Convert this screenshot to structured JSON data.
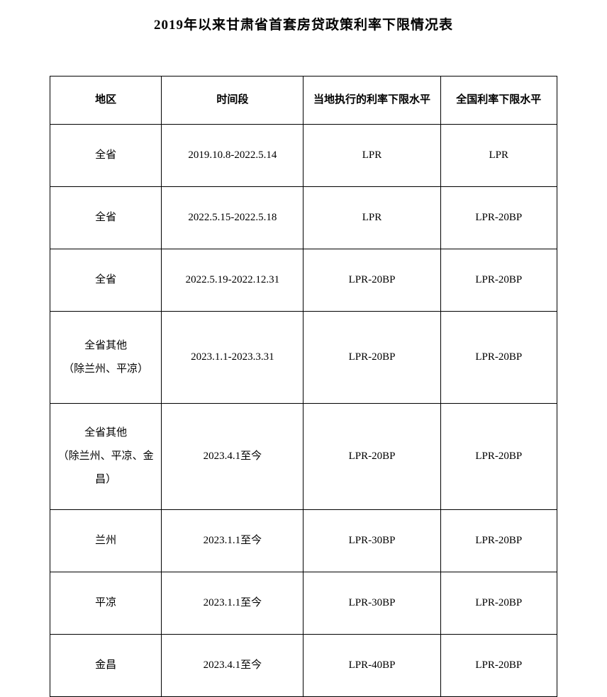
{
  "title": "2019年以来甘肃省首套房贷政策利率下限情况表",
  "table": {
    "type": "table",
    "background_color": "#ffffff",
    "border_color": "#000000",
    "text_color": "#000000",
    "title_fontsize": 19,
    "cell_fontsize": 15,
    "columns": [
      {
        "key": "region",
        "label": "地区",
        "width_pct": 22
      },
      {
        "key": "period",
        "label": "时间段",
        "width_pct": 28
      },
      {
        "key": "local_rate",
        "label": "当地执行的利率下限水平",
        "width_pct": 27
      },
      {
        "key": "national_rate",
        "label": "全国利率下限水平",
        "width_pct": 23
      }
    ],
    "rows": [
      {
        "region": "全省",
        "period": "2019.10.8-2022.5.14",
        "local_rate": "LPR",
        "national_rate": "LPR",
        "row_class": "row-standard"
      },
      {
        "region": "全省",
        "period": "2022.5.15-2022.5.18",
        "local_rate": "LPR",
        "national_rate": "LPR-20BP",
        "row_class": "row-standard"
      },
      {
        "region": "全省",
        "period": "2022.5.19-2022.12.31",
        "local_rate": "LPR-20BP",
        "national_rate": "LPR-20BP",
        "row_class": "row-standard"
      },
      {
        "region_line1": "全省其他",
        "region_line2": "（除兰州、平凉）",
        "period": "2023.1.1-2023.3.31",
        "local_rate": "LPR-20BP",
        "national_rate": "LPR-20BP",
        "row_class": "row-tall",
        "multiline": true
      },
      {
        "region_line1": "全省其他",
        "region_line2": "（除兰州、平凉、金昌）",
        "period": "2023.4.1至今",
        "local_rate": "LPR-20BP",
        "national_rate": "LPR-20BP",
        "row_class": "row-taller",
        "multiline": true
      },
      {
        "region": "兰州",
        "period": "2023.1.1至今",
        "local_rate": "LPR-30BP",
        "national_rate": "LPR-20BP",
        "row_class": "row-standard"
      },
      {
        "region": "平凉",
        "period": "2023.1.1至今",
        "local_rate": "LPR-30BP",
        "national_rate": "LPR-20BP",
        "row_class": "row-standard"
      },
      {
        "region": "金昌",
        "period": "2023.4.1至今",
        "local_rate": "LPR-40BP",
        "national_rate": "LPR-20BP",
        "row_class": "row-standard"
      }
    ]
  }
}
